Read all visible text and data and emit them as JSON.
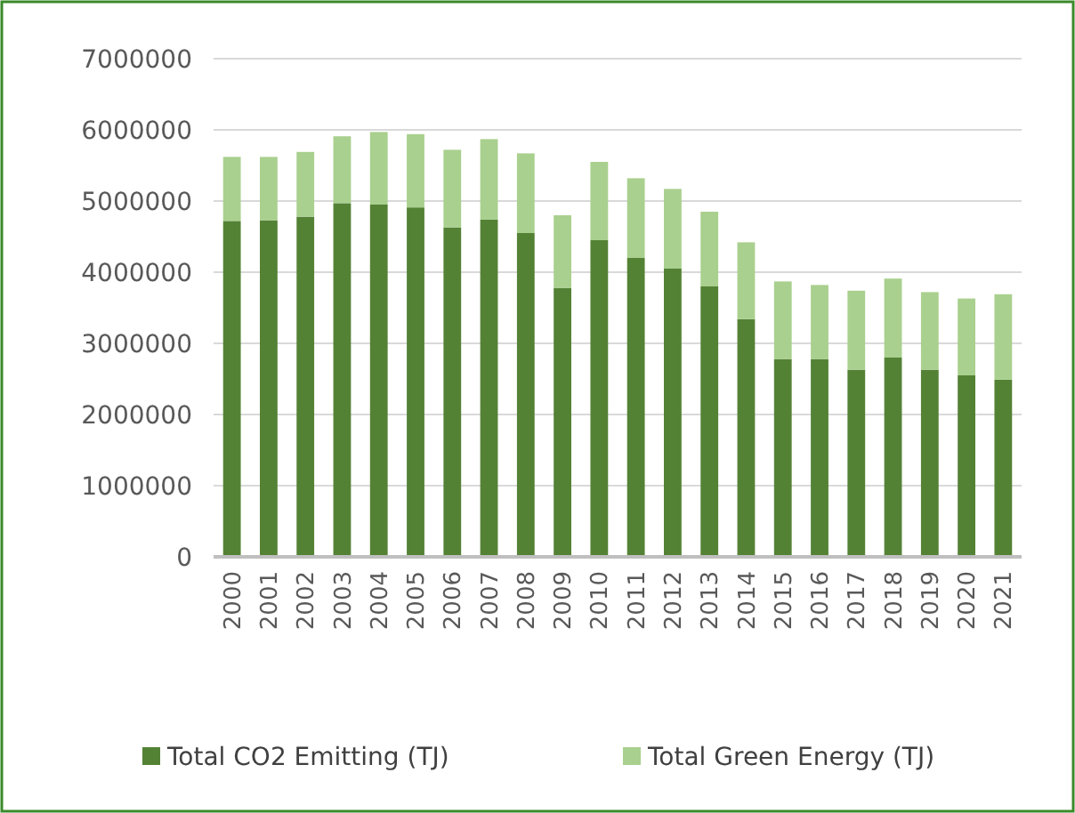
{
  "chart_data": {
    "type": "bar",
    "stacked": true,
    "categories": [
      "2000",
      "2001",
      "2002",
      "2003",
      "2004",
      "2005",
      "2006",
      "2007",
      "2008",
      "2009",
      "2010",
      "2011",
      "2012",
      "2013",
      "2014",
      "2015",
      "2016",
      "2017",
      "2018",
      "2019",
      "2020",
      "2021"
    ],
    "series": [
      {
        "name": "Total CO2 Emitting (TJ)",
        "color": "#548235",
        "values": [
          4720000,
          4730000,
          4780000,
          4970000,
          4950000,
          4910000,
          4630000,
          4740000,
          4550000,
          3780000,
          4450000,
          4200000,
          4050000,
          3800000,
          3340000,
          2780000,
          2780000,
          2630000,
          2800000,
          2630000,
          2550000,
          2490000
        ]
      },
      {
        "name": "Total Green Energy (TJ)",
        "color": "#a9d08e",
        "values": [
          900000,
          890000,
          910000,
          940000,
          1020000,
          1030000,
          1090000,
          1130000,
          1120000,
          1020000,
          1100000,
          1120000,
          1120000,
          1050000,
          1080000,
          1090000,
          1040000,
          1110000,
          1110000,
          1090000,
          1080000,
          1200000
        ]
      }
    ],
    "ylim": [
      0,
      7000000
    ],
    "yticks": [
      0,
      1000000,
      2000000,
      3000000,
      4000000,
      5000000,
      6000000,
      7000000
    ],
    "grid": "y",
    "legend": "bottom"
  }
}
